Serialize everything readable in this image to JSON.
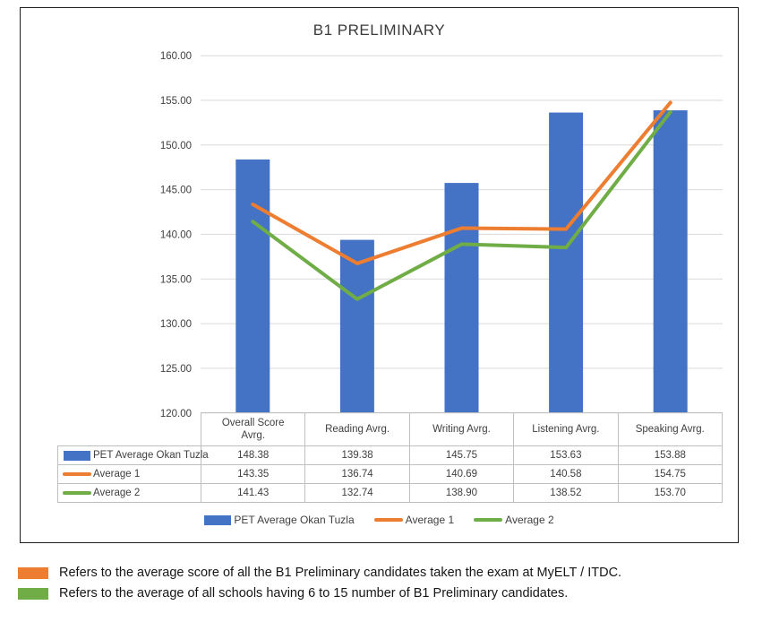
{
  "chart_data": {
    "type": "bar+line",
    "title": "B1 PRELIMINARY",
    "categories": [
      "Overall Score Avrg.",
      "Reading Avrg.",
      "Writing Avrg.",
      "Listening Avrg.",
      "Speaking Avrg."
    ],
    "series": [
      {
        "name": "PET Average Okan Tuzla",
        "type": "bar",
        "color": "#4472C4",
        "values": [
          148.38,
          139.38,
          145.75,
          153.63,
          153.88
        ]
      },
      {
        "name": "Average 1",
        "type": "line",
        "color": "#ED7D31",
        "values": [
          143.35,
          136.74,
          140.69,
          140.58,
          154.75
        ]
      },
      {
        "name": "Average 2",
        "type": "line",
        "color": "#70AD47",
        "values": [
          141.43,
          132.74,
          138.9,
          138.52,
          153.7
        ]
      }
    ],
    "ylim": [
      120,
      160
    ],
    "ytick_step": 5,
    "grid": true,
    "grid_color": "#d9d9d9",
    "legend_position": "bottom",
    "data_table_shown": true
  },
  "table": {
    "rows": [
      {
        "values": [
          "148.38",
          "139.38",
          "145.75",
          "153.63",
          "153.88"
        ]
      },
      {
        "values": [
          "143.35",
          "136.74",
          "140.69",
          "140.58",
          "154.75"
        ]
      },
      {
        "values": [
          "141.43",
          "132.74",
          "138.90",
          "138.52",
          "153.70"
        ]
      }
    ]
  },
  "footnotes": [
    {
      "color": "#ED7D31",
      "text": "Refers to the average score of all the B1 Preliminary candidates taken the exam at MyELT / ITDC."
    },
    {
      "color": "#70AD47",
      "text": "Refers to the average of all schools having 6 to 15 number of B1 Preliminary candidates."
    }
  ]
}
